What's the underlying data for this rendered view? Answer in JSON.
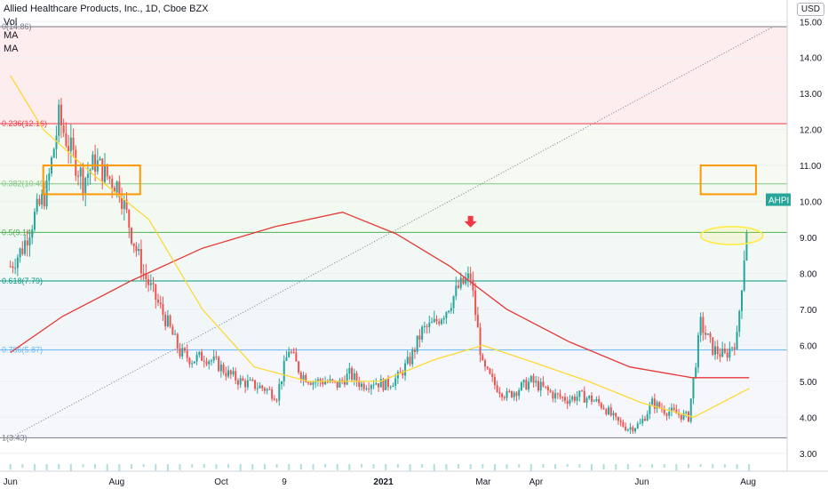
{
  "header": {
    "title": "Allied Healthcare Products, Inc., 1D, Cboe BZX",
    "indicators": [
      "Vol",
      "MA",
      "MA"
    ],
    "currency": "USD"
  },
  "chart_data": {
    "type": "candlestick",
    "symbol": "AHPI",
    "ylim": [
      2.5,
      15.6
    ],
    "y_ticks": [
      3.0,
      4.0,
      5.0,
      6.0,
      7.0,
      8.0,
      9.0,
      10.0,
      11.0,
      12.0,
      13.0,
      14.0,
      15.0
    ],
    "x_ticks": [
      "Jun",
      "Aug",
      "Oct",
      "9",
      "2021",
      "Mar",
      "Apr",
      "Jun",
      "Aug"
    ],
    "last_price_label": "AHPI",
    "last_price": 10.05,
    "fib_levels": [
      {
        "label": "0(14.86)",
        "value": 14.86,
        "color": "#787b86"
      },
      {
        "label": "0.236(12.16)",
        "value": 12.16,
        "color": "#f23645"
      },
      {
        "label": "0.382(10.49)",
        "value": 10.49,
        "color": "#81c784"
      },
      {
        "label": "0.5(9.14)",
        "value": 9.14,
        "color": "#4caf50"
      },
      {
        "label": "0.618(7.79)",
        "value": 7.79,
        "color": "#089981"
      },
      {
        "label": "0.786(5.87)",
        "value": 5.87,
        "color": "#64b5f6"
      },
      {
        "label": "1(3.43)",
        "value": 3.43,
        "color": "#787b86"
      }
    ],
    "close_series": [
      {
        "t": "2020-06-01",
        "c": 8.2
      },
      {
        "t": "2020-06-08",
        "c": 8.7
      },
      {
        "t": "2020-06-15",
        "c": 9.6
      },
      {
        "t": "2020-06-22",
        "c": 10.3
      },
      {
        "t": "2020-06-29",
        "c": 12.3
      },
      {
        "t": "2020-07-06",
        "c": 11.4
      },
      {
        "t": "2020-07-13",
        "c": 10.6
      },
      {
        "t": "2020-07-20",
        "c": 11.1
      },
      {
        "t": "2020-07-27",
        "c": 10.7
      },
      {
        "t": "2020-08-03",
        "c": 10.4
      },
      {
        "t": "2020-08-10",
        "c": 9.1
      },
      {
        "t": "2020-08-17",
        "c": 8.0
      },
      {
        "t": "2020-08-24",
        "c": 7.3
      },
      {
        "t": "2020-08-31",
        "c": 6.6
      },
      {
        "t": "2020-09-07",
        "c": 5.8
      },
      {
        "t": "2020-09-14",
        "c": 5.6
      },
      {
        "t": "2020-09-21",
        "c": 5.7
      },
      {
        "t": "2020-09-28",
        "c": 5.5
      },
      {
        "t": "2020-10-05",
        "c": 5.2
      },
      {
        "t": "2020-10-12",
        "c": 5.0
      },
      {
        "t": "2020-10-19",
        "c": 4.9
      },
      {
        "t": "2020-10-26",
        "c": 4.8
      },
      {
        "t": "2020-11-02",
        "c": 4.6
      },
      {
        "t": "2020-11-09",
        "c": 5.9
      },
      {
        "t": "2020-11-16",
        "c": 5.2
      },
      {
        "t": "2020-11-23",
        "c": 5.0
      },
      {
        "t": "2020-11-30",
        "c": 5.0
      },
      {
        "t": "2020-12-07",
        "c": 4.9
      },
      {
        "t": "2020-12-14",
        "c": 5.2
      },
      {
        "t": "2020-12-21",
        "c": 4.9
      },
      {
        "t": "2020-12-28",
        "c": 5.0
      },
      {
        "t": "2021-01-04",
        "c": 4.9
      },
      {
        "t": "2021-01-11",
        "c": 5.1
      },
      {
        "t": "2021-01-18",
        "c": 5.6
      },
      {
        "t": "2021-01-25",
        "c": 6.4
      },
      {
        "t": "2021-02-01",
        "c": 6.6
      },
      {
        "t": "2021-02-08",
        "c": 7.0
      },
      {
        "t": "2021-02-15",
        "c": 7.6
      },
      {
        "t": "2021-02-22",
        "c": 7.9
      },
      {
        "t": "2021-03-01",
        "c": 5.4
      },
      {
        "t": "2021-03-08",
        "c": 4.9
      },
      {
        "t": "2021-03-15",
        "c": 4.6
      },
      {
        "t": "2021-03-22",
        "c": 4.8
      },
      {
        "t": "2021-03-29",
        "c": 5.0
      },
      {
        "t": "2021-04-05",
        "c": 4.8
      },
      {
        "t": "2021-04-12",
        "c": 4.6
      },
      {
        "t": "2021-04-19",
        "c": 4.5
      },
      {
        "t": "2021-04-26",
        "c": 4.6
      },
      {
        "t": "2021-05-03",
        "c": 4.5
      },
      {
        "t": "2021-05-10",
        "c": 4.3
      },
      {
        "t": "2021-05-17",
        "c": 3.9
      },
      {
        "t": "2021-05-24",
        "c": 3.7
      },
      {
        "t": "2021-05-31",
        "c": 3.8
      },
      {
        "t": "2021-06-07",
        "c": 4.4
      },
      {
        "t": "2021-06-14",
        "c": 4.2
      },
      {
        "t": "2021-06-21",
        "c": 4.1
      },
      {
        "t": "2021-06-28",
        "c": 4.0
      },
      {
        "t": "2021-07-05",
        "c": 6.6
      },
      {
        "t": "2021-07-12",
        "c": 5.9
      },
      {
        "t": "2021-07-19",
        "c": 5.7
      },
      {
        "t": "2021-07-26",
        "c": 6.2
      },
      {
        "t": "2021-08-02",
        "c": 10.05
      }
    ],
    "ma_red": [
      {
        "t": "2020-06-01",
        "v": 5.8
      },
      {
        "t": "2020-07-01",
        "v": 6.8
      },
      {
        "t": "2020-08-10",
        "v": 7.8
      },
      {
        "t": "2020-09-20",
        "v": 8.7
      },
      {
        "t": "2020-11-01",
        "v": 9.3
      },
      {
        "t": "2020-12-10",
        "v": 9.7
      },
      {
        "t": "2021-01-10",
        "v": 9.1
      },
      {
        "t": "2021-02-10",
        "v": 8.2
      },
      {
        "t": "2021-03-15",
        "v": 7.0
      },
      {
        "t": "2021-04-20",
        "v": 6.1
      },
      {
        "t": "2021-05-25",
        "v": 5.4
      },
      {
        "t": "2021-06-30",
        "v": 5.1
      },
      {
        "t": "2021-08-02",
        "v": 5.1
      }
    ],
    "ma_yellow": [
      {
        "t": "2020-06-01",
        "v": 13.5
      },
      {
        "t": "2020-06-20",
        "v": 12.0
      },
      {
        "t": "2020-07-20",
        "v": 10.7
      },
      {
        "t": "2020-08-20",
        "v": 9.5
      },
      {
        "t": "2020-09-20",
        "v": 7.0
      },
      {
        "t": "2020-10-20",
        "v": 5.4
      },
      {
        "t": "2020-11-20",
        "v": 5.0
      },
      {
        "t": "2021-01-01",
        "v": 5.0
      },
      {
        "t": "2021-02-01",
        "v": 5.6
      },
      {
        "t": "2021-03-01",
        "v": 6.0
      },
      {
        "t": "2021-04-01",
        "v": 5.5
      },
      {
        "t": "2021-05-01",
        "v": 5.0
      },
      {
        "t": "2021-06-01",
        "v": 4.4
      },
      {
        "t": "2021-07-01",
        "v": 4.0
      },
      {
        "t": "2021-08-02",
        "v": 4.8
      }
    ],
    "trend_line": [
      {
        "t": "2020-06-01",
        "v": 3.43
      },
      {
        "t": "2021-08-16",
        "v": 14.86
      }
    ],
    "annotations": [
      {
        "type": "rectangle",
        "t0": "2020-06-20",
        "t1": "2020-08-15",
        "y0": 10.2,
        "y1": 11.0,
        "color": "#ff9800"
      },
      {
        "type": "rectangle",
        "t0": "2021-07-05",
        "t1": "2021-08-06",
        "y0": 10.2,
        "y1": 11.0,
        "color": "#ff9800"
      },
      {
        "type": "ellipse",
        "t0": "2021-07-05",
        "t1": "2021-08-10",
        "y": 9.05,
        "ry": 0.25,
        "color": "#ffeb3b"
      },
      {
        "type": "arrow-down",
        "t": "2021-02-22",
        "y": 9.35,
        "color": "#f23645"
      }
    ],
    "grid": true,
    "legend": "top-left",
    "colors": {
      "up": "#26a69a",
      "down": "#ef5350"
    }
  }
}
